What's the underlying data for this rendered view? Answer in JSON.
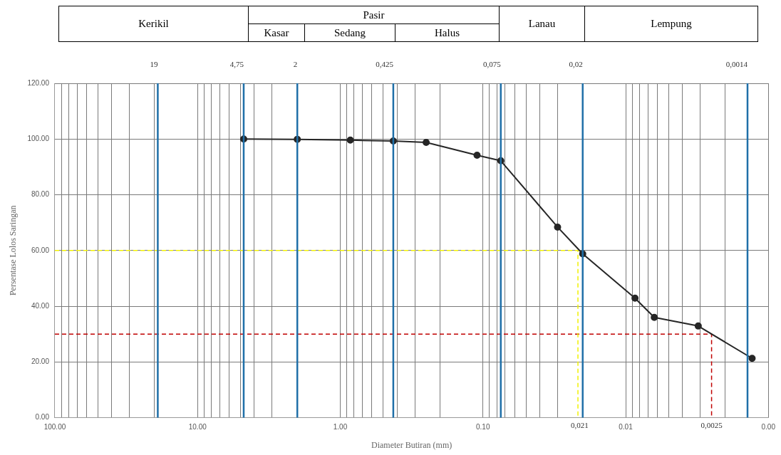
{
  "chart_data": {
    "type": "line",
    "xlabel": "Diameter Butiran (mm)",
    "ylabel": "Persentase Lolos Saringan",
    "annotations": [
      "Kerikil",
      "Pasir",
      "Kasar",
      "Sedang",
      "Halus",
      "Lanau",
      "Lempung",
      {
        "text": "0,021",
        "x": 0.021,
        "y": 0
      },
      {
        "text": "0,0025",
        "x": 0.0025,
        "y": 0
      }
    ],
    "series": [
      {
        "color": "#262626",
        "marker": "circle",
        "line_style": "solid",
        "x": [
          4.75,
          2,
          0.85,
          0.425,
          0.25,
          0.11,
          0.075,
          0.03,
          0.02,
          0.0086,
          0.0063,
          0.0031,
          0.0013
        ],
        "values": [
          100,
          99.9,
          99.6,
          99.3,
          98.8,
          94.2,
          92.2,
          68.4,
          58.8,
          42.9,
          36,
          32.9,
          21.3
        ]
      },
      {
        "color": "#f2f200",
        "marker": "none",
        "line_style": "dashed",
        "x": [
          100,
          0.0216,
          0.0216
        ],
        "values": [
          60,
          60,
          0
        ]
      },
      {
        "color": "#c00000",
        "marker": "none",
        "line_style": "dashed",
        "x": [
          100,
          0.0025,
          0.0025
        ],
        "values": [
          30,
          30,
          0
        ]
      }
    ],
    "ref_lines": [
      {
        "axis": "x",
        "value": 19,
        "label": "19",
        "color": "#1f6fa8"
      },
      {
        "axis": "x",
        "value": 4.75,
        "label": "4,75",
        "color": "#1f6fa8"
      },
      {
        "axis": "x",
        "value": 2,
        "label": "2",
        "color": "#1f6fa8"
      },
      {
        "axis": "x",
        "value": 0.425,
        "label": "0,425",
        "color": "#1f6fa8"
      },
      {
        "axis": "x",
        "value": 0.075,
        "label": "0,075",
        "color": "#1f6fa8"
      },
      {
        "axis": "x",
        "value": 0.02,
        "label": "0,02",
        "color": "#1f6fa8"
      },
      {
        "axis": "x",
        "value": 0.0014,
        "label": "0,0014",
        "color": "#1f6fa8"
      }
    ],
    "log": "x",
    "xlim": [
      100,
      0.001
    ],
    "xticks": [
      {
        "value": 100,
        "label": "100.00"
      },
      {
        "value": 90,
        "label": null
      },
      {
        "value": 80,
        "label": null
      },
      {
        "value": 70,
        "label": null
      },
      {
        "value": 60,
        "label": null
      },
      {
        "value": 50,
        "label": null
      },
      {
        "value": 40,
        "label": null
      },
      {
        "value": 30,
        "label": null
      },
      {
        "value": 20,
        "label": null
      },
      {
        "value": 10,
        "label": "10.00"
      },
      {
        "value": 9,
        "label": null
      },
      {
        "value": 8,
        "label": null
      },
      {
        "value": 7,
        "label": null
      },
      {
        "value": 6,
        "label": null
      },
      {
        "value": 5,
        "label": null
      },
      {
        "value": 4,
        "label": null
      },
      {
        "value": 3,
        "label": null
      },
      {
        "value": 1,
        "label": "1.00"
      },
      {
        "value": 0.9,
        "label": null
      },
      {
        "value": 0.8,
        "label": null
      },
      {
        "value": 0.7,
        "label": null
      },
      {
        "value": 0.6,
        "label": null
      },
      {
        "value": 0.5,
        "label": null
      },
      {
        "value": 0.4,
        "label": null
      },
      {
        "value": 0.3,
        "label": null
      },
      {
        "value": 0.2,
        "label": null
      },
      {
        "value": 0.1,
        "label": "0.10"
      },
      {
        "value": 0.09,
        "label": null
      },
      {
        "value": 0.08,
        "label": null
      },
      {
        "value": 0.07,
        "label": null
      },
      {
        "value": 0.06,
        "label": null
      },
      {
        "value": 0.05,
        "label": null
      },
      {
        "value": 0.04,
        "label": null
      },
      {
        "value": 0.03,
        "label": null
      },
      {
        "value": 0.01,
        "label": "0.01"
      },
      {
        "value": 0.009,
        "label": null
      },
      {
        "value": 0.008,
        "label": null
      },
      {
        "value": 0.007,
        "label": null
      },
      {
        "value": 0.006,
        "label": null
      },
      {
        "value": 0.005,
        "label": null
      },
      {
        "value": 0.004,
        "label": null
      },
      {
        "value": 0.003,
        "label": null
      },
      {
        "value": 0.002,
        "label": null
      },
      {
        "value": 0.001,
        "label": "0.00"
      }
    ],
    "ylim": [
      0,
      120
    ],
    "yticks": [
      {
        "value": 0,
        "label": "0.00"
      },
      {
        "value": 20,
        "label": "20.00"
      },
      {
        "value": 40,
        "label": "40.00"
      },
      {
        "value": 60,
        "label": "60.00"
      },
      {
        "value": 80,
        "label": "80.00"
      },
      {
        "value": 100,
        "label": "100.00"
      },
      {
        "value": 120,
        "label": "120.00"
      }
    ],
    "grid": true,
    "legend": false
  }
}
